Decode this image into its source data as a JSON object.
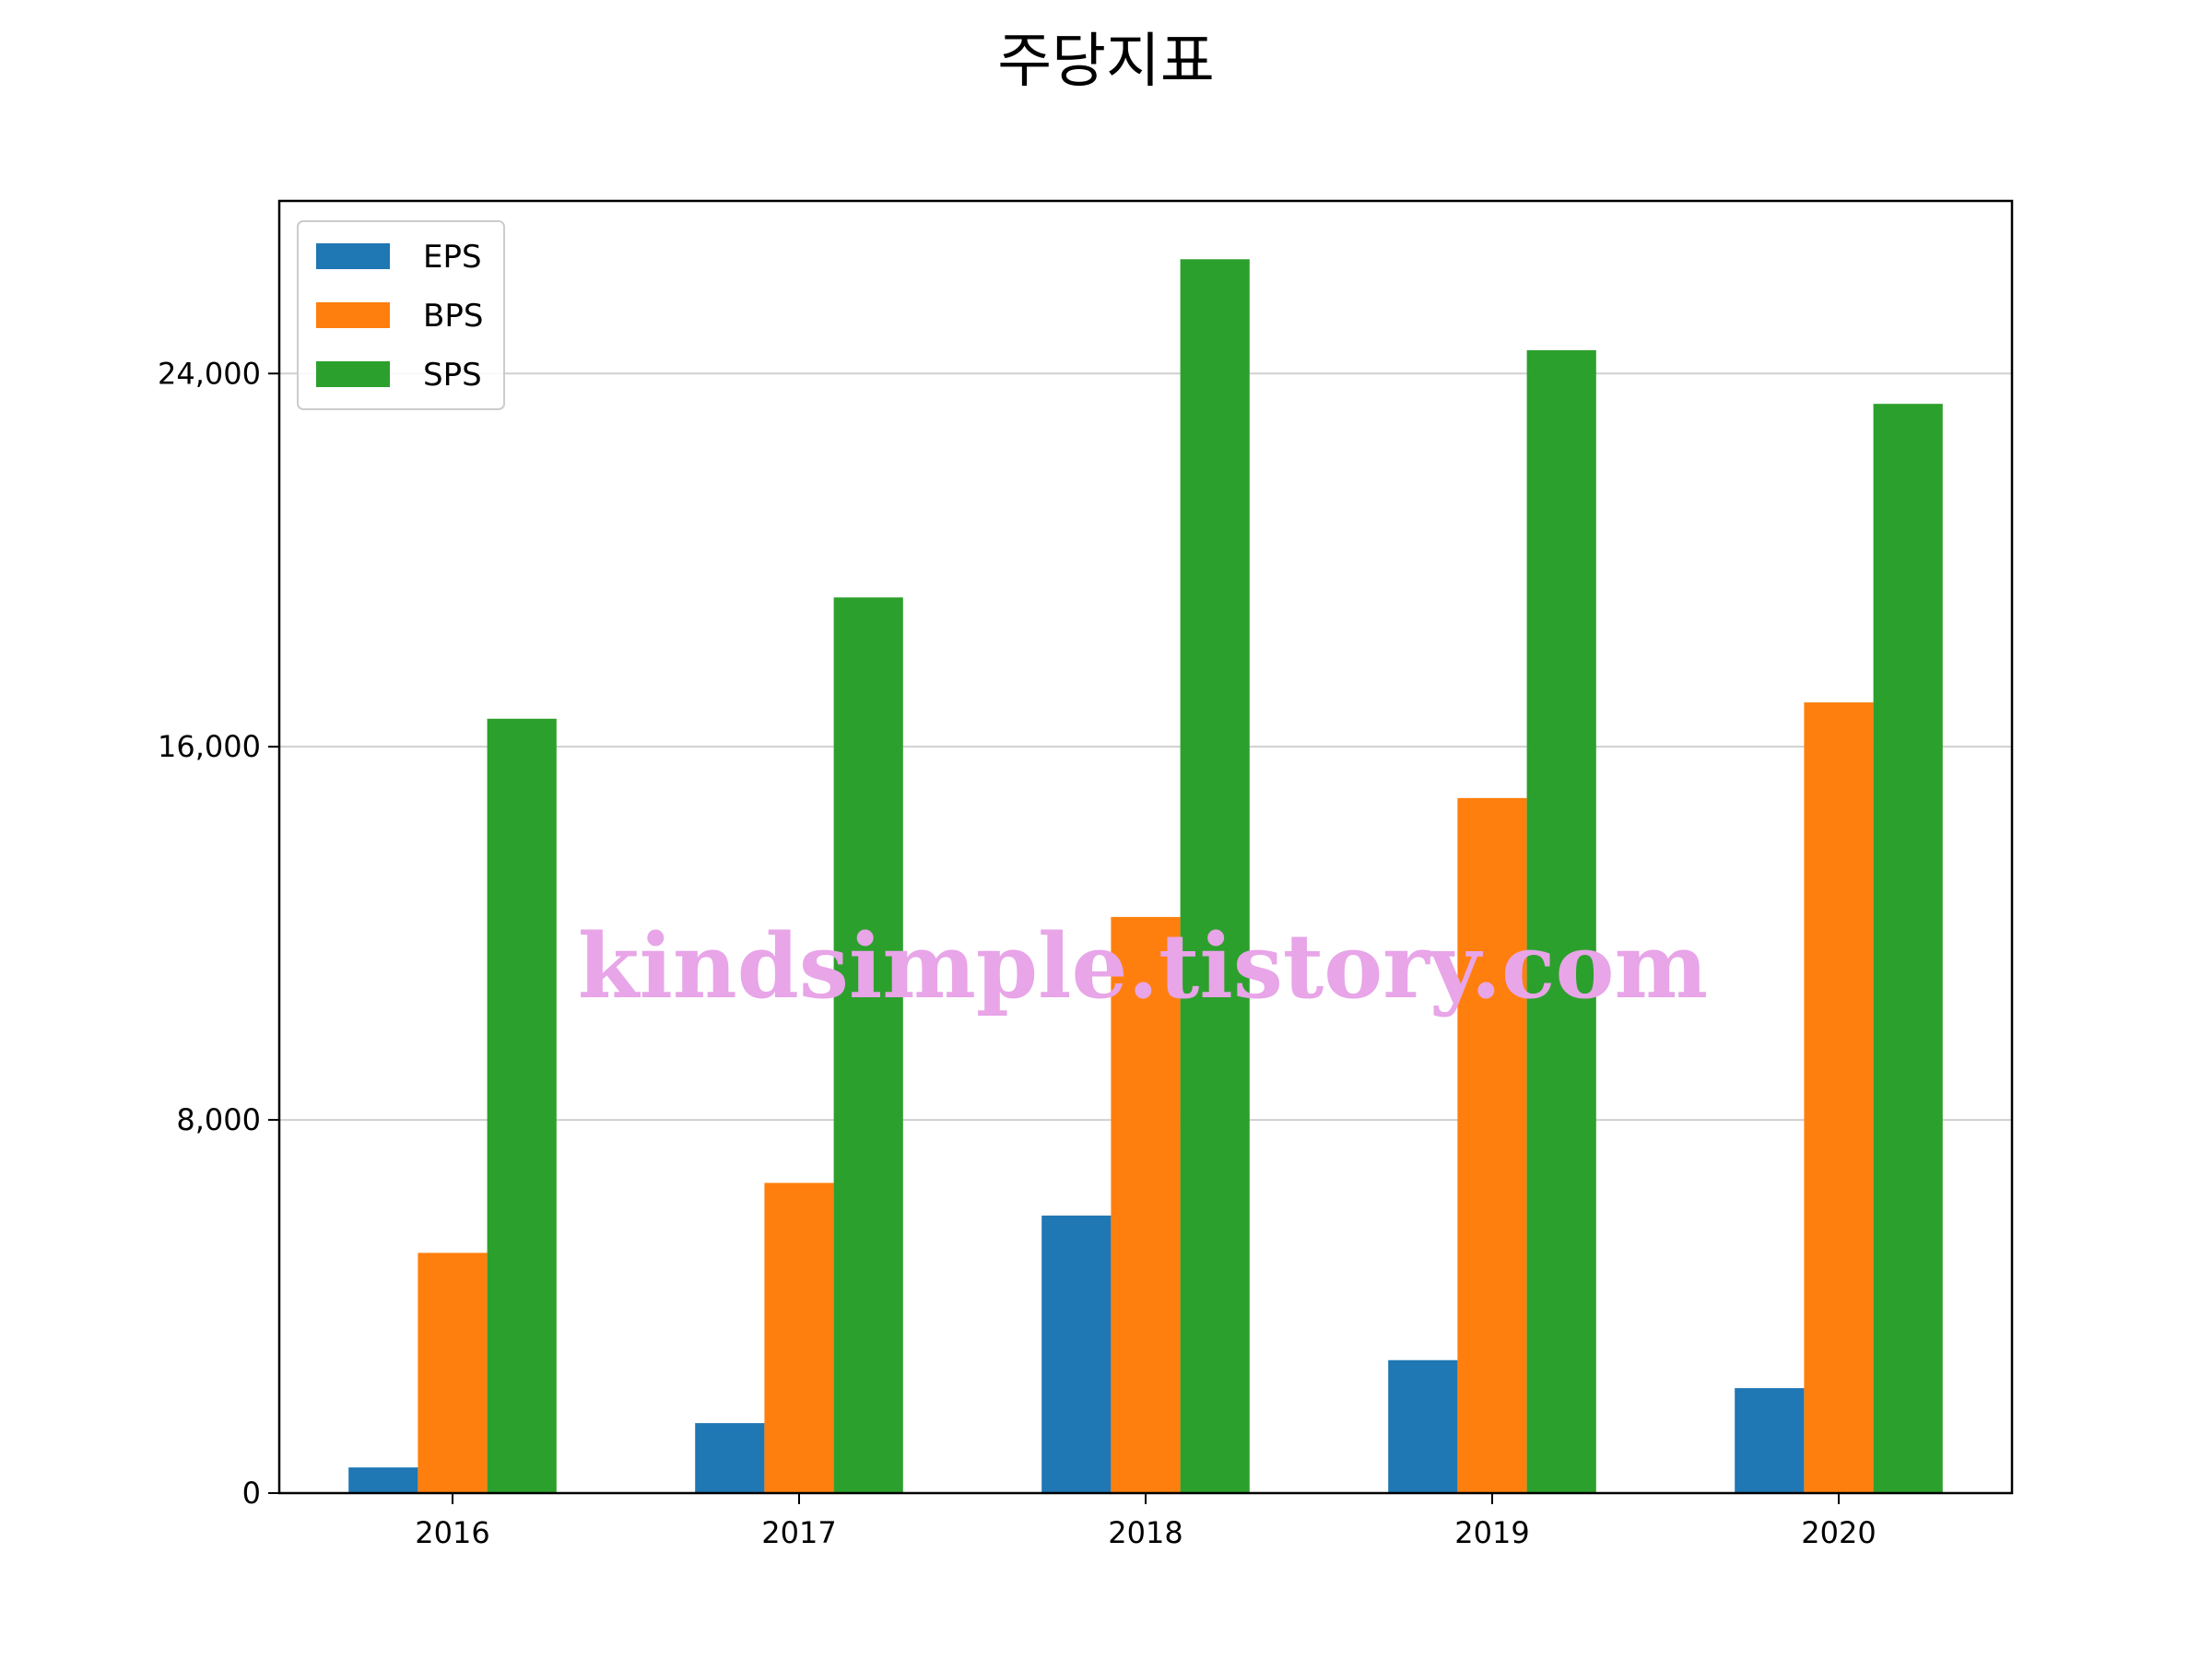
{
  "chart_data": {
    "type": "bar",
    "title": "주당지표",
    "categories": [
      "2016",
      "2017",
      "2018",
      "2019",
      "2020"
    ],
    "series": [
      {
        "name": "EPS",
        "color": "#1f77b4",
        "values": [
          550,
          1500,
          5950,
          2850,
          2250
        ]
      },
      {
        "name": "BPS",
        "color": "#ff7f0e",
        "values": [
          5150,
          6650,
          12350,
          14900,
          16950
        ]
      },
      {
        "name": "SPS",
        "color": "#2ca02c",
        "values": [
          16600,
          19200,
          26450,
          24500,
          23350
        ]
      }
    ],
    "yticks": [
      "0",
      "8,000",
      "16,000",
      "24,000"
    ],
    "ytick_values": [
      0,
      8000,
      16000,
      24000
    ],
    "ylim": [
      0,
      27700
    ],
    "grid": "y",
    "legend_position": "upper-left"
  },
  "watermark": "kindsimple.tistory.com"
}
